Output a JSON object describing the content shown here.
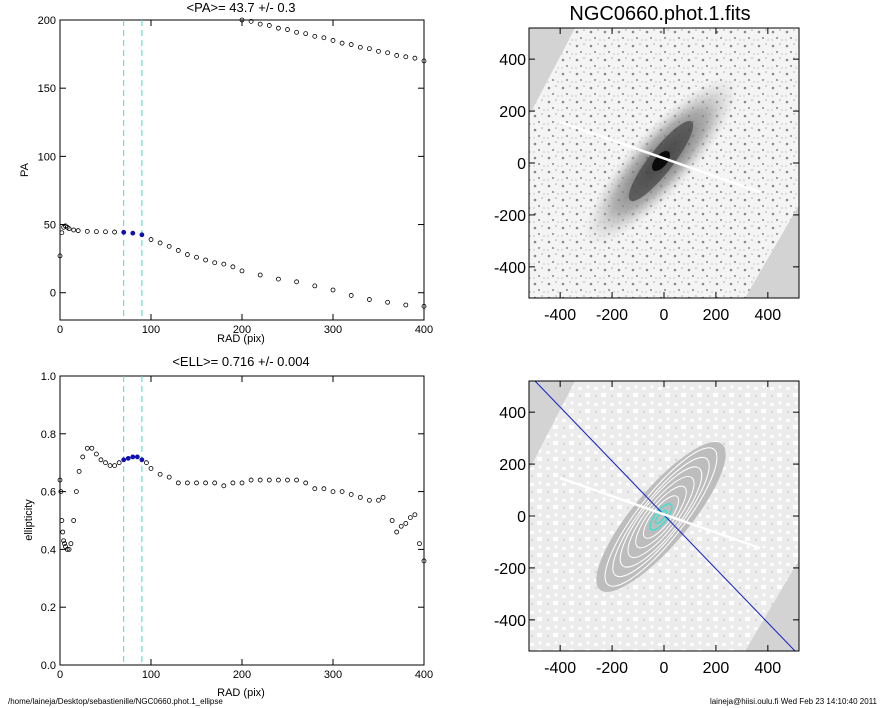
{
  "chart_data": [
    {
      "type": "scatter",
      "title": "<PA>=  43.7 +/-   0.3",
      "xlabel": "RAD (pix)",
      "ylabel": "PA",
      "xlim": [
        0,
        400
      ],
      "ylim": [
        -20,
        200
      ],
      "xticks": [
        0,
        100,
        200,
        300,
        400
      ],
      "yticks": [
        0,
        50,
        100,
        150,
        200
      ],
      "vlines": [
        70,
        90
      ],
      "highlight_range": [
        70,
        90
      ],
      "series": [
        {
          "x": [
            0,
            2,
            4,
            6,
            8,
            10,
            15,
            20,
            30,
            40,
            50,
            60,
            70,
            80,
            90,
            100,
            110,
            120,
            130,
            140,
            150,
            160,
            170,
            180,
            190,
            200,
            220,
            240,
            260,
            280,
            300,
            320,
            340,
            360,
            380,
            400
          ],
          "values": [
            27,
            44,
            48,
            49,
            48,
            47,
            46,
            45.5,
            45,
            44.8,
            44.7,
            44.5,
            44.3,
            43.7,
            42.5,
            39,
            36.5,
            34,
            31,
            28,
            26,
            24,
            22,
            21,
            19,
            16,
            13,
            10,
            8,
            5,
            2,
            -2,
            -5,
            -7,
            -9,
            -10
          ]
        },
        {
          "x": [
            200,
            210,
            220,
            230,
            240,
            250,
            260,
            270,
            280,
            290,
            300,
            310,
            320,
            330,
            340,
            350,
            360,
            370,
            380,
            390,
            400
          ],
          "values": [
            200,
            199,
            197,
            196,
            194,
            193,
            191,
            190,
            188,
            187,
            185,
            183,
            182,
            180,
            179,
            177,
            176,
            174,
            173,
            172,
            170
          ]
        }
      ]
    },
    {
      "type": "scatter",
      "title": "<ELL>= 0.716 +/-  0.004",
      "xlabel": "RAD (pix)",
      "ylabel": "ellipticity",
      "xlim": [
        0,
        400
      ],
      "ylim": [
        0,
        1
      ],
      "xticks": [
        0,
        100,
        200,
        300,
        400
      ],
      "yticks": [
        0.0,
        0.2,
        0.4,
        0.6,
        0.8,
        1.0
      ],
      "vlines": [
        70,
        90
      ],
      "highlight_range": [
        70,
        90
      ],
      "series": [
        {
          "x": [
            0,
            1,
            2,
            3,
            4,
            5,
            6,
            8,
            10,
            12,
            15,
            18,
            21,
            25,
            30,
            35,
            40,
            45,
            50,
            55,
            60,
            65,
            70,
            75,
            80,
            85,
            90,
            95,
            100,
            110,
            120,
            130,
            140,
            150,
            160,
            170,
            180,
            190,
            200,
            210,
            220,
            230,
            240,
            250,
            260,
            270,
            280,
            290,
            300,
            310,
            320,
            330,
            340,
            350,
            355,
            365,
            370,
            375,
            380,
            385,
            390,
            395,
            400
          ],
          "values": [
            0.64,
            0.6,
            0.5,
            0.46,
            0.43,
            0.42,
            0.41,
            0.4,
            0.4,
            0.42,
            0.5,
            0.6,
            0.67,
            0.72,
            0.75,
            0.75,
            0.73,
            0.71,
            0.7,
            0.69,
            0.69,
            0.7,
            0.71,
            0.715,
            0.72,
            0.72,
            0.71,
            0.7,
            0.68,
            0.66,
            0.65,
            0.63,
            0.63,
            0.63,
            0.63,
            0.63,
            0.62,
            0.63,
            0.63,
            0.64,
            0.64,
            0.64,
            0.64,
            0.64,
            0.64,
            0.63,
            0.61,
            0.61,
            0.6,
            0.6,
            0.59,
            0.58,
            0.57,
            0.57,
            0.58,
            0.5,
            0.46,
            0.48,
            0.49,
            0.51,
            0.52,
            0.42,
            0.36
          ]
        }
      ]
    }
  ],
  "images": {
    "title": "NGC0660.phot.1.fits",
    "xticks": [
      -400,
      -200,
      0,
      200,
      400
    ],
    "yticks": [
      400,
      200,
      0,
      -200,
      -400
    ],
    "range": [
      -520,
      520
    ]
  },
  "footer": {
    "left": "/home/laineja/Desktop/sebastienille/NGC0660.phot.1_ellipse",
    "right": "laineja@hiisi.oulu.fi  Wed Feb 23 14:10:40 2011"
  },
  "colors": {
    "vline": "#40e0d0",
    "highlight": "#1010b0",
    "major_axis": "#1020d0",
    "contour": "#ffffff",
    "inner_contour": "#40e0d0"
  }
}
